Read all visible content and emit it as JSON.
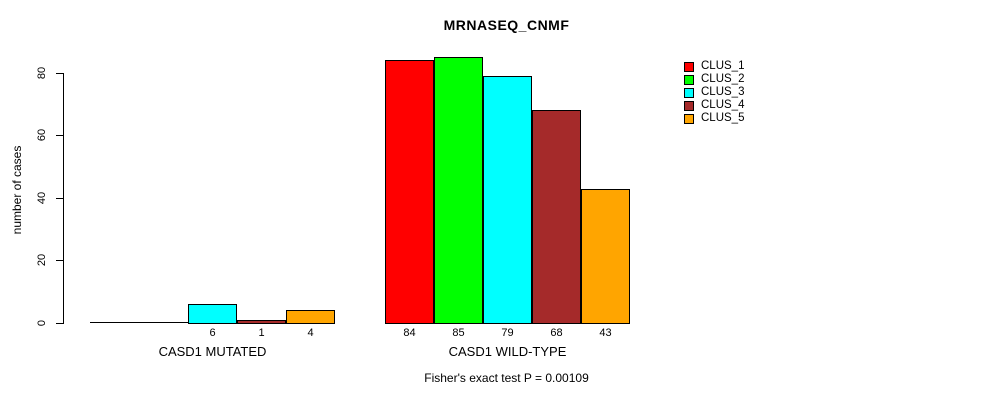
{
  "title": "MRNASEQ_CNMF",
  "caption": "Fisher's exact test P = 0.00109",
  "chart_data": {
    "type": "bar",
    "title": "MRNASEQ_CNMF",
    "subtitle": "Fisher's exact test P = 0.00109",
    "xlabel": "",
    "ylabel": "number of cases",
    "ylim": [
      0,
      85
    ],
    "yticks": [
      0,
      20,
      40,
      60,
      80
    ],
    "grid": false,
    "legend_position": "top-right",
    "categories": [
      "CASD1 MUTATED",
      "CASD1 WILD-TYPE"
    ],
    "series": [
      {
        "name": "CLUS_1",
        "color": "#FF0000",
        "values": [
          0,
          84
        ]
      },
      {
        "name": "CLUS_2",
        "color": "#00FF00",
        "values": [
          0,
          85
        ]
      },
      {
        "name": "CLUS_3",
        "color": "#00FFFF",
        "values": [
          6,
          79
        ]
      },
      {
        "name": "CLUS_4",
        "color": "#A52A2A",
        "values": [
          1,
          68
        ]
      },
      {
        "name": "CLUS_5",
        "color": "#FFA500",
        "values": [
          4,
          43
        ]
      }
    ],
    "bar_value_labels": {
      "CASD1 MUTATED": [
        null,
        null,
        6,
        1,
        4
      ],
      "CASD1 WILD-TYPE": [
        84,
        85,
        79,
        68,
        43
      ]
    }
  }
}
